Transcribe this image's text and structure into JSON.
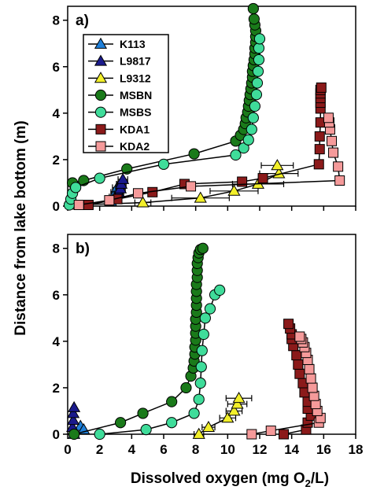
{
  "figure": {
    "ylabel": "Distance from lake bottom (m)",
    "xlabel_pre": "Dissolved oxygen (mg O",
    "xlabel_sub": "2",
    "xlabel_post": "/L)"
  },
  "chart_data": [
    {
      "type": "scatter",
      "panel_label": "a)",
      "xlim": [
        0,
        18
      ],
      "ylim": [
        0,
        8.6
      ],
      "xticks": [
        0,
        2,
        4,
        6,
        8,
        10,
        12,
        14,
        16,
        18
      ],
      "yticks": [
        0,
        2,
        4,
        6,
        8
      ],
      "show_x_tick_labels": false,
      "legend_position": "top-left",
      "series": [
        {
          "name": "K113",
          "marker": "triangle",
          "color": "#1f7fd8",
          "x": [
            2.7,
            2.9,
            3.0,
            3.1
          ],
          "y": [
            0.2,
            0.4,
            0.6,
            0.8
          ],
          "xerr": [
            0.3,
            0.3,
            0.3,
            0.3
          ]
        },
        {
          "name": "L9817",
          "marker": "triangle",
          "color": "#1a1a8c",
          "x": [
            3.2,
            3.3,
            3.35,
            3.45
          ],
          "y": [
            0.55,
            0.75,
            0.95,
            1.15
          ],
          "xerr": [
            0.3,
            0.3,
            0.3,
            0.3
          ]
        },
        {
          "name": "L9312",
          "marker": "triangle",
          "color": "#f2ef2a",
          "x": [
            0.5,
            4.7,
            8.3,
            10.4,
            11.9,
            13.2,
            13.1
          ],
          "y": [
            0.05,
            0.15,
            0.35,
            0.65,
            0.95,
            1.4,
            1.75
          ],
          "xerr": [
            0,
            0.5,
            1.8,
            1.5,
            1.6,
            1.2,
            1.0
          ]
        },
        {
          "name": "MSBN",
          "marker": "circle",
          "color": "#1a7a1a",
          "x": [
            0.3,
            1.0,
            3.7,
            7.9,
            10.5,
            10.8,
            11.0,
            11.1,
            11.15,
            11.25,
            11.3,
            11.35,
            11.4,
            11.45,
            11.5,
            11.55,
            11.55,
            11.6,
            11.65,
            11.7,
            11.7,
            11.75,
            11.75,
            11.75,
            11.7,
            11.65,
            11.6
          ],
          "y": [
            1.0,
            1.1,
            1.6,
            2.25,
            2.8,
            3.05,
            3.3,
            3.55,
            3.8,
            4.05,
            4.3,
            4.55,
            4.8,
            5.05,
            5.3,
            5.55,
            5.8,
            6.05,
            6.3,
            6.55,
            6.8,
            7.05,
            7.3,
            7.55,
            7.8,
            8.05,
            8.5
          ]
        },
        {
          "name": "MSBS",
          "marker": "circle",
          "color": "#3fdc9a",
          "x": [
            0.1,
            0.2,
            0.3,
            0.5,
            2.0,
            6.0,
            10.5,
            11.0,
            11.3,
            11.5,
            11.6,
            11.7,
            11.8,
            11.85,
            11.9,
            11.95,
            11.95,
            12.0
          ],
          "y": [
            0.05,
            0.3,
            0.55,
            0.8,
            1.2,
            1.8,
            2.2,
            2.5,
            2.85,
            3.3,
            3.8,
            4.3,
            4.8,
            5.3,
            5.8,
            6.3,
            6.8,
            7.2
          ]
        },
        {
          "name": "KDA1",
          "marker": "square",
          "color": "#8b1a1a",
          "x": [
            1.3,
            3.1,
            5.3,
            7.3,
            10.9,
            12.2,
            15.7,
            15.75,
            15.75,
            15.8,
            15.8,
            15.8,
            15.8,
            15.8,
            15.8,
            15.85
          ],
          "y": [
            0.05,
            0.3,
            0.6,
            0.95,
            1.05,
            1.2,
            1.8,
            2.45,
            3.0,
            3.6,
            4.2,
            4.45,
            4.65,
            4.85,
            5.0,
            5.1
          ]
        },
        {
          "name": "KDA2",
          "marker": "square",
          "color": "#f59a9a",
          "x": [
            0.7,
            2.6,
            4.4,
            7.7,
            17.0,
            16.9,
            16.6,
            16.5,
            16.4,
            16.35,
            16.3
          ],
          "y": [
            0.05,
            0.25,
            0.55,
            0.85,
            1.1,
            1.7,
            2.3,
            2.8,
            3.3,
            3.6,
            3.8
          ]
        }
      ]
    },
    {
      "type": "scatter",
      "panel_label": "b)",
      "xlim": [
        0,
        18
      ],
      "ylim": [
        0,
        8.6
      ],
      "xticks": [
        0,
        2,
        4,
        6,
        8,
        10,
        12,
        14,
        16,
        18
      ],
      "yticks": [
        0,
        2,
        4,
        6,
        8
      ],
      "show_x_tick_labels": true,
      "series": [
        {
          "name": "K113",
          "marker": "triangle",
          "color": "#1f7fd8",
          "x": [
            0.4,
            0.8,
            1.0
          ],
          "y": [
            0.0,
            0.35,
            0.2
          ]
        },
        {
          "name": "L9817",
          "marker": "triangle",
          "color": "#1a1a8c",
          "x": [
            0.3,
            0.35,
            0.35,
            0.4
          ],
          "y": [
            0.3,
            0.6,
            0.9,
            1.15
          ]
        },
        {
          "name": "L9312",
          "marker": "triangle",
          "color": "#f2ef2a",
          "x": [
            8.2,
            8.8,
            10.0,
            10.4,
            10.6,
            10.7
          ],
          "y": [
            0.0,
            0.3,
            0.7,
            1.0,
            1.3,
            1.55
          ],
          "xerr": [
            0.3,
            0.4,
            0.5,
            0.5,
            0.6,
            0.8
          ]
        },
        {
          "name": "MSBN",
          "marker": "circle",
          "color": "#1a7a1a",
          "x": [
            0.4,
            3.3,
            4.7,
            6.5,
            7.4,
            7.7,
            7.85,
            7.9,
            7.95,
            7.95,
            8.0,
            8.0,
            8.0,
            8.0,
            8.05,
            8.05,
            8.05,
            8.05,
            8.05,
            8.1,
            8.1,
            8.1,
            8.15,
            8.2,
            8.3,
            8.45
          ],
          "y": [
            0.0,
            0.5,
            0.9,
            1.4,
            2.0,
            2.5,
            2.85,
            3.15,
            3.45,
            3.75,
            4.05,
            4.35,
            4.65,
            4.95,
            5.25,
            5.55,
            5.85,
            6.15,
            6.45,
            6.75,
            7.05,
            7.35,
            7.6,
            7.8,
            7.95,
            8.0
          ]
        },
        {
          "name": "MSBS",
          "marker": "circle",
          "color": "#3fdc9a",
          "x": [
            2.0,
            4.9,
            6.5,
            7.9,
            8.2,
            8.3,
            8.35,
            8.4,
            8.5,
            8.6,
            8.9,
            9.2,
            9.5
          ],
          "y": [
            0.0,
            0.2,
            0.5,
            0.9,
            1.5,
            2.2,
            2.9,
            3.6,
            4.3,
            5.0,
            5.4,
            6.0,
            6.2
          ]
        },
        {
          "name": "KDA1",
          "marker": "square",
          "color": "#8b1a1a",
          "x": [
            13.5,
            14.9,
            15.0,
            15.2,
            15.0,
            15.0,
            14.8,
            14.7,
            14.5,
            14.4,
            14.3,
            14.1,
            14.0,
            14.0,
            13.9,
            13.8
          ],
          "y": [
            0.0,
            0.2,
            0.5,
            0.8,
            1.1,
            1.4,
            1.8,
            2.2,
            2.6,
            3.0,
            3.4,
            3.8,
            4.1,
            4.3,
            4.55,
            4.75
          ]
        },
        {
          "name": "KDA2",
          "marker": "square",
          "color": "#f59a9a",
          "x": [
            11.5,
            12.7,
            15.7,
            15.8,
            15.6,
            15.5,
            15.4,
            15.3,
            15.2,
            15.1,
            15.0,
            14.9,
            14.8,
            14.7,
            14.6,
            14.5
          ],
          "y": [
            0.0,
            0.15,
            0.5,
            0.7,
            1.0,
            1.3,
            1.65,
            2.0,
            2.4,
            2.8,
            3.2,
            3.5,
            3.75,
            3.95,
            4.1,
            4.2
          ]
        }
      ]
    }
  ]
}
